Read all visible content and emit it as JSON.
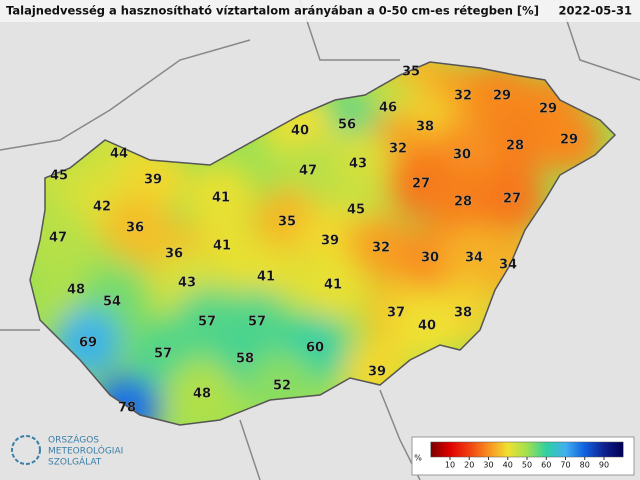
{
  "header": {
    "title": "Talajnedvesség a hasznosítható víztartalom arányában a 0-50 cm-es rétegben [%]",
    "date": "2022-05-31"
  },
  "map": {
    "points": [
      35,
      32,
      29,
      29,
      46,
      56,
      40,
      38,
      28,
      29,
      32,
      30,
      44,
      43,
      47,
      45,
      39,
      27,
      28,
      27,
      41,
      42,
      45,
      35,
      36,
      47,
      39,
      41,
      32,
      30,
      34,
      36,
      34,
      43,
      41,
      41,
      48,
      54,
      37,
      38,
      57,
      57,
      40,
      69,
      57,
      60,
      58,
      39,
      52,
      48,
      78
    ]
  },
  "legend": {
    "unit": "%",
    "ticks": [
      10,
      20,
      30,
      40,
      50,
      60,
      70,
      80,
      90
    ],
    "colors": [
      "#7a0000",
      "#e00000",
      "#f04010",
      "#f89020",
      "#f0e030",
      "#a0e050",
      "#30d0a0",
      "#40b0f0",
      "#1060e0",
      "#102090",
      "#000050"
    ]
  },
  "logo": {
    "lines": [
      "ORSZÁGOS",
      "METEOROLÓGIAI",
      "SZOLGÁLAT"
    ]
  }
}
